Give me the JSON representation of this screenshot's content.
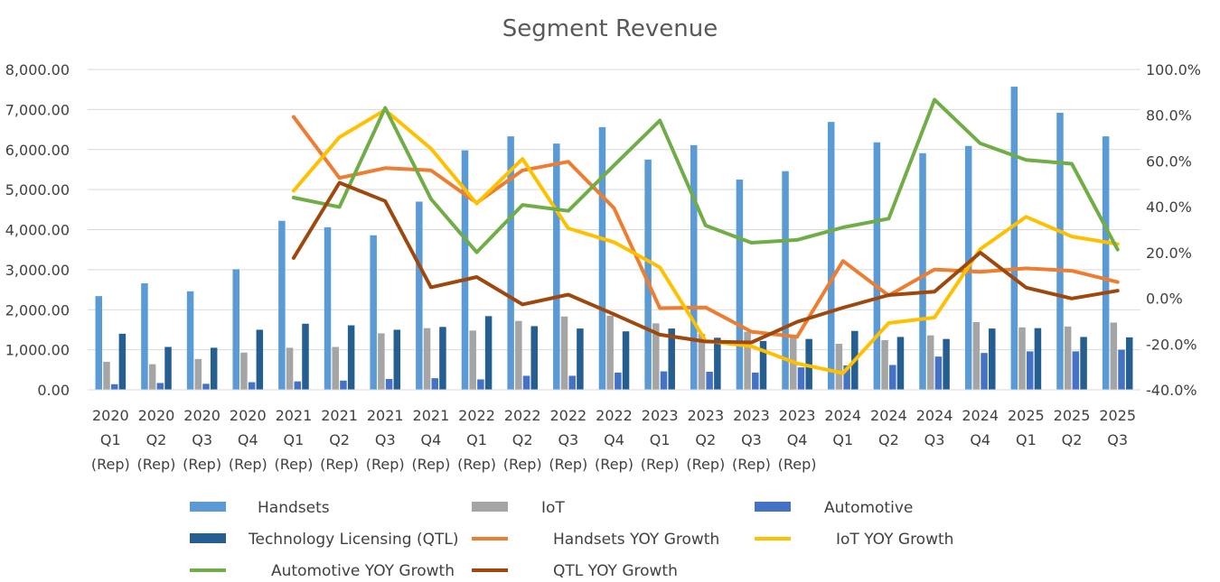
{
  "chart_data": {
    "type": "bar",
    "title": "Segment Revenue",
    "categories": [
      [
        "2020",
        "Q1",
        "(Rep)"
      ],
      [
        "2020",
        "Q2",
        "(Rep)"
      ],
      [
        "2020",
        "Q3",
        "(Rep)"
      ],
      [
        "2020",
        "Q4",
        "(Rep)"
      ],
      [
        "2021",
        "Q1",
        "(Rep)"
      ],
      [
        "2021",
        "Q2",
        "(Rep)"
      ],
      [
        "2021",
        "Q3",
        "(Rep)"
      ],
      [
        "2021",
        "Q4",
        "(Rep)"
      ],
      [
        "2022",
        "Q1",
        "(Rep)"
      ],
      [
        "2022",
        "Q2",
        "(Rep)"
      ],
      [
        "2022",
        "Q3",
        "(Rep)"
      ],
      [
        "2022",
        "Q4",
        "(Rep)"
      ],
      [
        "2023",
        "Q1",
        "(Rep)"
      ],
      [
        "2023",
        "Q2",
        "(Rep)"
      ],
      [
        "2023",
        "Q3",
        "(Rep)"
      ],
      [
        "2023",
        "Q4",
        "(Rep)"
      ],
      [
        "2024",
        "Q1"
      ],
      [
        "2024",
        "Q2"
      ],
      [
        "2024",
        "Q3"
      ],
      [
        "2024",
        "Q4"
      ],
      [
        "2025",
        "Q1"
      ],
      [
        "2025",
        "Q2"
      ],
      [
        "2025",
        "Q3"
      ]
    ],
    "y_left": {
      "ylim": [
        0,
        8000
      ],
      "ticks": [
        0,
        1000,
        2000,
        3000,
        4000,
        5000,
        6000,
        7000,
        8000
      ],
      "tick_labels": [
        "0.00",
        "1,000.00",
        "2,000.00",
        "3,000.00",
        "4,000.00",
        "5,000.00",
        "6,000.00",
        "7,000.00",
        "8,000.00"
      ]
    },
    "y_right": {
      "ylim": [
        -40,
        100
      ],
      "ticks": [
        -40,
        -20,
        0,
        20,
        40,
        60,
        80,
        100
      ],
      "tick_labels": [
        "-40.0%",
        "-20.0%",
        "0.0%",
        "20.0%",
        "40.0%",
        "60.0%",
        "80.0%",
        "100.0%"
      ]
    },
    "bar_series": [
      {
        "name": "Handsets",
        "color": "#5b9bd5",
        "values": [
          2340,
          2660,
          2460,
          3010,
          4220,
          4060,
          3860,
          4700,
          5980,
          6330,
          6150,
          6560,
          5750,
          6110,
          5250,
          5460,
          6690,
          6180,
          5910,
          6090,
          7570,
          6920,
          6330
        ]
      },
      {
        "name": "IoT",
        "color": "#a5a5a5",
        "values": [
          700,
          640,
          770,
          930,
          1050,
          1070,
          1410,
          1540,
          1480,
          1720,
          1830,
          1850,
          1660,
          1400,
          1450,
          1350,
          1150,
          1240,
          1360,
          1690,
          1560,
          1580,
          1680
        ]
      },
      {
        "name": "Automotive",
        "color": "#4472c4",
        "values": [
          140,
          170,
          150,
          190,
          210,
          230,
          270,
          290,
          260,
          350,
          350,
          430,
          460,
          450,
          430,
          560,
          610,
          620,
          830,
          920,
          960,
          960,
          1000
        ]
      },
      {
        "name": "Technology Licensing (QTL)",
        "color": "#255e91",
        "values": [
          1400,
          1070,
          1050,
          1500,
          1650,
          1610,
          1500,
          1570,
          1840,
          1590,
          1530,
          1460,
          1530,
          1300,
          1220,
          1270,
          1470,
          1320,
          1270,
          1530,
          1540,
          1320,
          1310
        ]
      }
    ],
    "line_series": [
      {
        "name": "Handsets YOY Growth",
        "color": "#ed7d31",
        "values": [
          null,
          null,
          null,
          null,
          79.3,
          52.6,
          56.9,
          55.9,
          41.7,
          55.9,
          59.7,
          39.4,
          -4.3,
          -4.0,
          -14.6,
          -16.8,
          16.3,
          1.2,
          12.6,
          11.6,
          13.1,
          12.0,
          7.1
        ]
      },
      {
        "name": "IoT YOY Growth",
        "color": "#ffc000",
        "values": [
          null,
          null,
          null,
          null,
          47.0,
          70.4,
          82.3,
          65.4,
          41.4,
          60.9,
          30.6,
          24.5,
          13.5,
          -18.6,
          -21.0,
          -28.5,
          -32.7,
          -10.8,
          -8.4,
          21.5,
          35.6,
          27.0,
          23.7
        ]
      },
      {
        "name": "Automotive   YOY Growth",
        "color": "#70ad47",
        "values": [
          null,
          null,
          null,
          null,
          44.0,
          39.9,
          83.2,
          43.4,
          20.1,
          40.8,
          38.2,
          58.1,
          77.7,
          31.8,
          24.3,
          25.5,
          31.0,
          34.8,
          86.8,
          67.7,
          60.5,
          58.8,
          21.3
        ]
      },
      {
        "name": "QTL  YOY Growth",
        "color": "#9e480e",
        "values": [
          null,
          null,
          null,
          null,
          17.6,
          50.5,
          42.5,
          4.8,
          9.3,
          -2.7,
          1.6,
          -7.0,
          -15.9,
          -18.9,
          -19.3,
          -10.3,
          -4.1,
          1.4,
          2.9,
          20.0,
          4.7,
          -0.1,
          3.3
        ]
      }
    ],
    "legend": {
      "placement": "bottom",
      "items": [
        {
          "label": "Handsets",
          "kind": "bar",
          "color": "#5b9bd5"
        },
        {
          "label": "IoT",
          "kind": "bar",
          "color": "#a5a5a5"
        },
        {
          "label": "Automotive",
          "kind": "bar",
          "color": "#4472c4"
        },
        {
          "label": "Technology Licensing (QTL)",
          "kind": "bar",
          "color": "#255e91"
        },
        {
          "label": "Handsets YOY Growth",
          "kind": "line",
          "color": "#ed7d31"
        },
        {
          "label": "IoT YOY Growth",
          "kind": "line",
          "color": "#ffc000"
        },
        {
          "label": "Automotive   YOY Growth",
          "kind": "line",
          "color": "#70ad47"
        },
        {
          "label": "QTL  YOY Growth",
          "kind": "line",
          "color": "#9e480e"
        }
      ]
    },
    "grid": true,
    "gridline_color": "#d9d9d9"
  }
}
